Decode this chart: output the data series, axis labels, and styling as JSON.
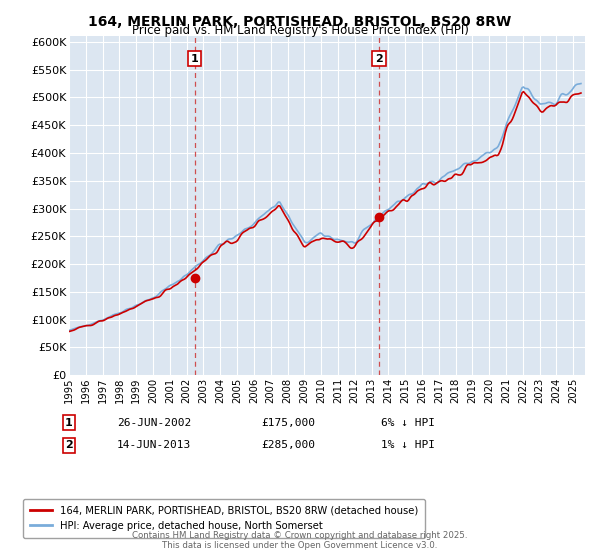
{
  "title": "164, MERLIN PARK, PORTISHEAD, BRISTOL, BS20 8RW",
  "subtitle": "Price paid vs. HM Land Registry's House Price Index (HPI)",
  "ylabel_ticks": [
    "£0",
    "£50K",
    "£100K",
    "£150K",
    "£200K",
    "£250K",
    "£300K",
    "£350K",
    "£400K",
    "£450K",
    "£500K",
    "£550K",
    "£600K"
  ],
  "ytick_vals": [
    0,
    50000,
    100000,
    150000,
    200000,
    250000,
    300000,
    350000,
    400000,
    450000,
    500000,
    550000,
    600000
  ],
  "ylim": [
    0,
    610000
  ],
  "xlim_start": 1995.0,
  "xlim_end": 2025.7,
  "marker1_x": 2002.48,
  "marker1_y": 175000,
  "marker1_label": "1",
  "marker1_date": "26-JUN-2002",
  "marker1_price": "£175,000",
  "marker1_hpi": "6% ↓ HPI",
  "marker2_x": 2013.45,
  "marker2_y": 285000,
  "marker2_label": "2",
  "marker2_date": "14-JUN-2013",
  "marker2_price": "£285,000",
  "marker2_hpi": "1% ↓ HPI",
  "line1_color": "#cc0000",
  "line2_color": "#7aacda",
  "line1_label": "164, MERLIN PARK, PORTISHEAD, BRISTOL, BS20 8RW (detached house)",
  "line2_label": "HPI: Average price, detached house, North Somerset",
  "footer": "Contains HM Land Registry data © Crown copyright and database right 2025.\nThis data is licensed under the Open Government Licence v3.0.",
  "background_color": "#ffffff",
  "plot_bg_color": "#dce6f1",
  "grid_color": "#ffffff"
}
